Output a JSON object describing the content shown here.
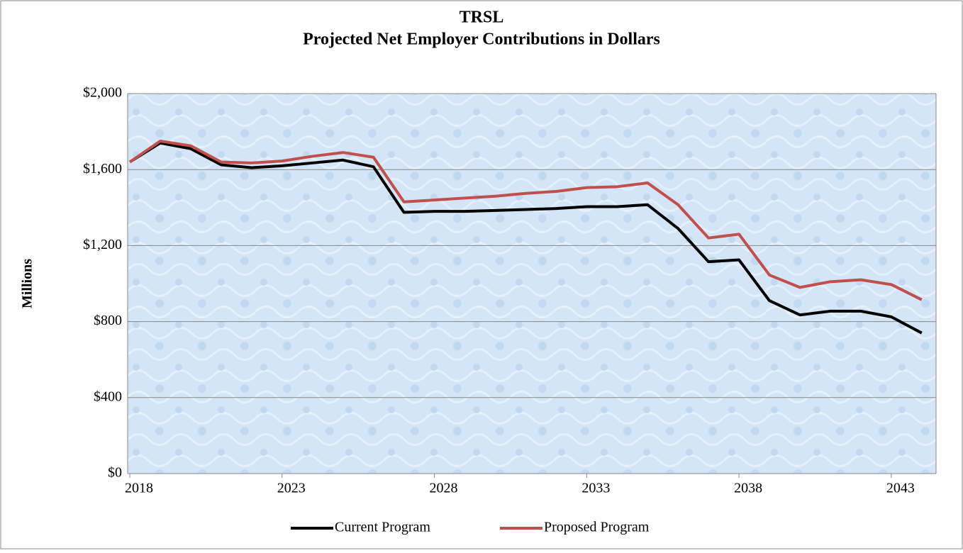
{
  "chart_data": {
    "type": "line",
    "title": "TRSL",
    "subtitle": "Projected Net Employer Contributions in Dollars",
    "y_label": "Millions",
    "x": [
      2018,
      2019,
      2020,
      2021,
      2022,
      2023,
      2024,
      2025,
      2026,
      2027,
      2028,
      2029,
      2030,
      2031,
      2032,
      2033,
      2034,
      2035,
      2036,
      2037,
      2038,
      2039,
      2040,
      2041,
      2042,
      2043,
      2044
    ],
    "series": [
      {
        "name": "Current Program",
        "color": "#000000",
        "values": [
          1640,
          1740,
          1710,
          1625,
          1610,
          1620,
          1635,
          1650,
          1615,
          1375,
          1380,
          1380,
          1385,
          1390,
          1395,
          1405,
          1405,
          1415,
          1290,
          1115,
          1125,
          910,
          835,
          855,
          855,
          825,
          740
        ]
      },
      {
        "name": "Proposed Program",
        "color": "#c0504d",
        "values": [
          1640,
          1750,
          1725,
          1640,
          1635,
          1645,
          1670,
          1690,
          1665,
          1430,
          1440,
          1450,
          1460,
          1475,
          1485,
          1505,
          1510,
          1530,
          1415,
          1240,
          1260,
          1045,
          980,
          1010,
          1020,
          995,
          915
        ]
      }
    ],
    "xlim": [
      2017.93,
      2044.47
    ],
    "xticks": [
      2018,
      2023,
      2028,
      2033,
      2038,
      2043
    ],
    "ylim": [
      0,
      2000
    ],
    "yticks": [
      {
        "value": 0,
        "label": "$0"
      },
      {
        "value": 400,
        "label": "$400"
      },
      {
        "value": 800,
        "label": "$800"
      },
      {
        "value": 1200,
        "label": "$1,200"
      },
      {
        "value": 1600,
        "label": "$1,600"
      },
      {
        "value": 2000,
        "label": "$2,000"
      }
    ],
    "grid": true,
    "legend": "bottom"
  }
}
